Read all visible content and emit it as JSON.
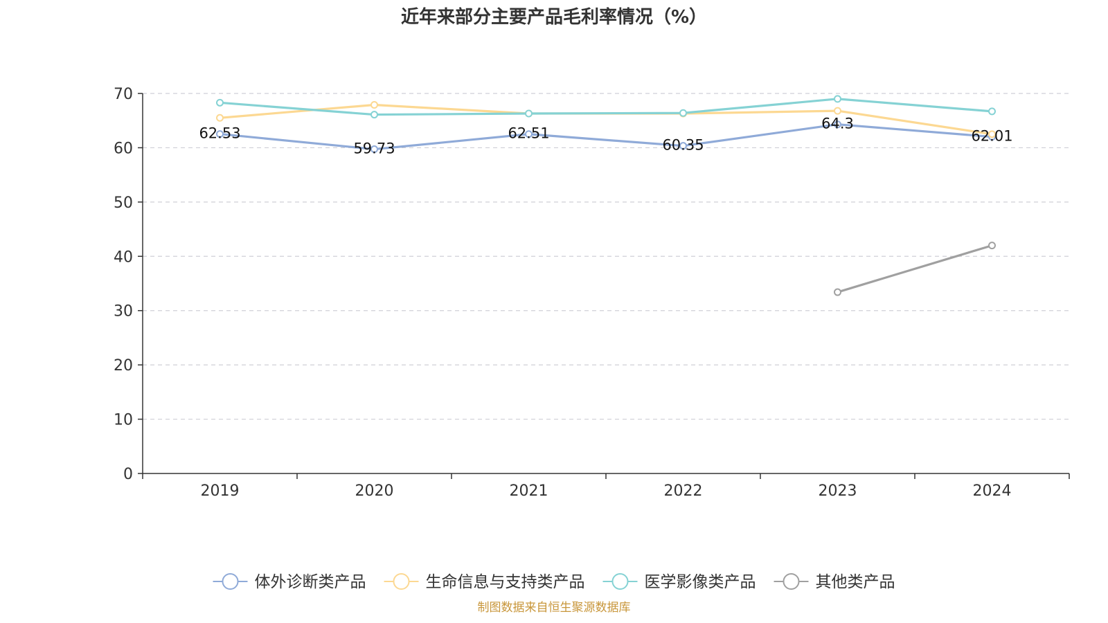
{
  "chart_data": {
    "type": "line",
    "title": "近年来部分主要产品毛利率情况（%）",
    "categories": [
      "2019",
      "2020",
      "2021",
      "2022",
      "2023",
      "2024"
    ],
    "ylim": [
      0,
      70
    ],
    "yticks": [
      "0",
      "10",
      "20",
      "30",
      "40",
      "50",
      "60",
      "70"
    ],
    "grid": true,
    "legend_position": "bottom",
    "series": [
      {
        "name": "体外诊断类产品",
        "color": "#8faad8",
        "values": [
          62.53,
          59.73,
          62.51,
          60.35,
          64.3,
          62.01
        ],
        "labels": [
          "62.53",
          "59.73",
          "62.51",
          "60.35",
          "64.3",
          "62.01"
        ]
      },
      {
        "name": "生命信息与支持类产品",
        "color": "#fcd892",
        "values": [
          65.5,
          67.9,
          66.3,
          66.3,
          66.8,
          62.5
        ],
        "labels": null
      },
      {
        "name": "医学影像类产品",
        "color": "#85d2d4",
        "values": [
          68.3,
          66.1,
          66.3,
          66.4,
          69.0,
          66.7
        ],
        "labels": null
      },
      {
        "name": "其他类产品",
        "color": "#a0a0a0",
        "values": [
          null,
          null,
          null,
          null,
          33.4,
          42.0
        ],
        "labels": null
      }
    ],
    "source": "制图数据来自恒生聚源数据库"
  }
}
